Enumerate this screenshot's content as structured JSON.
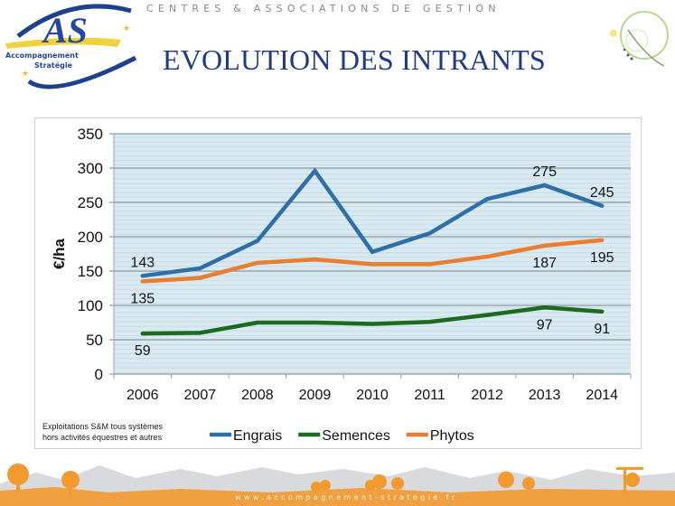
{
  "header": {
    "tagline": "CENTRES & ASSOCIATIONS DE GESTION",
    "title": "EVOLUTION DES INTRANTS",
    "logo": {
      "text_main": "AS",
      "line1": "Accompagnement",
      "line2": "Stratégie"
    }
  },
  "footer": {
    "url": "www.accompagnement-strategie.fr"
  },
  "footnote": {
    "line1": "Exploitations S&M tous systèmes",
    "line2": "hors activités équestres et autres"
  },
  "chart_data": {
    "type": "line",
    "title": "",
    "xlabel": "",
    "ylabel": "€/ha",
    "ylim": [
      0,
      350
    ],
    "yticks": [
      0,
      50,
      100,
      150,
      200,
      250,
      300,
      350
    ],
    "grid": true,
    "legend_position": "bottom",
    "categories": [
      "2006",
      "2007",
      "2008",
      "2009",
      "2010",
      "2011",
      "2012",
      "2013",
      "2014"
    ],
    "series": [
      {
        "name": "Engrais",
        "color": "#2e6fa7",
        "values": [
          143,
          154,
          194,
          296,
          178,
          205,
          255,
          275,
          245
        ]
      },
      {
        "name": "Semences",
        "color": "#1b6b1f",
        "values": [
          59,
          60,
          75,
          75,
          73,
          76,
          86,
          97,
          91
        ]
      },
      {
        "name": "Phytos",
        "color": "#ea7d2f",
        "values": [
          135,
          140,
          162,
          167,
          160,
          160,
          171,
          187,
          195
        ]
      }
    ],
    "data_labels": [
      {
        "series": "Engrais",
        "category": "2006",
        "text": "143",
        "placement": "above"
      },
      {
        "series": "Phytos",
        "category": "2006",
        "text": "135",
        "placement": "below"
      },
      {
        "series": "Semences",
        "category": "2006",
        "text": "59",
        "placement": "below"
      },
      {
        "series": "Engrais",
        "category": "2013",
        "text": "275",
        "placement": "above"
      },
      {
        "series": "Engrais",
        "category": "2014",
        "text": "245",
        "placement": "above"
      },
      {
        "series": "Phytos",
        "category": "2013",
        "text": "187",
        "placement": "below"
      },
      {
        "series": "Phytos",
        "category": "2014",
        "text": "195",
        "placement": "below"
      },
      {
        "series": "Semences",
        "category": "2013",
        "text": "97",
        "placement": "below"
      },
      {
        "series": "Semences",
        "category": "2014",
        "text": "91",
        "placement": "below"
      }
    ],
    "colors": {
      "plot_background": "#daeaf2",
      "gridline": "#8a9aa2",
      "minor_stripe": "#c7dce6"
    }
  }
}
